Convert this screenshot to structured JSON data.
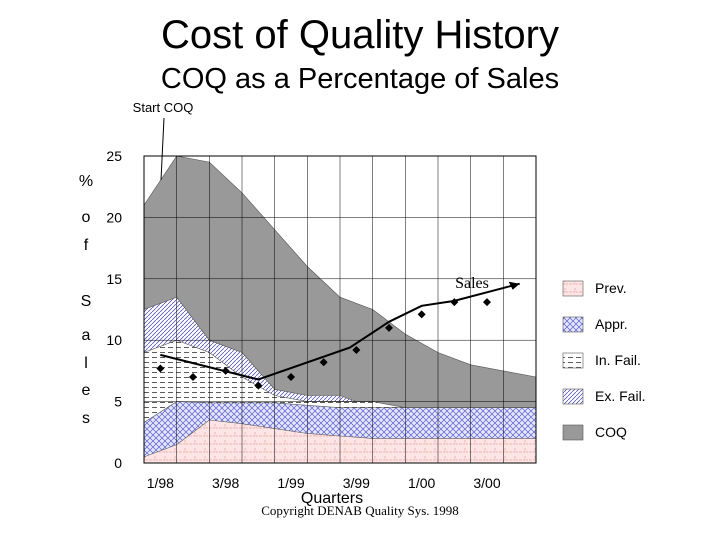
{
  "chart_data": {
    "type": "area",
    "title": "Cost of Quality History",
    "subtitle": "COQ as a Percentage of Sales",
    "ylabel": "% of Sales",
    "ylabel_chars": [
      "%",
      "o",
      "f",
      "S",
      "a",
      "l",
      "e",
      "s"
    ],
    "xlabel": "Quarters",
    "ylim": [
      0,
      25
    ],
    "yticks": [
      "0",
      "5",
      "10",
      "15",
      "20",
      "25"
    ],
    "xtick_labels": [
      "1/98",
      "3/98",
      "1/99",
      "3/99",
      "1/00",
      "3/00"
    ],
    "x_count": 13,
    "series": [
      {
        "name": "Prev.",
        "key": "prev",
        "values": [
          0.5,
          1.5,
          3.5,
          3.2,
          2.8,
          2.4,
          2.2,
          2.0,
          2.0,
          2.0,
          2.0,
          2.0,
          2.0
        ]
      },
      {
        "name": "Appr.",
        "key": "appr",
        "values": [
          3.3,
          5.0,
          4.9,
          4.9,
          4.9,
          4.7,
          4.5,
          4.5,
          4.5,
          4.5,
          4.5,
          4.5,
          4.5
        ]
      },
      {
        "name": "In. Fail.",
        "key": "infail",
        "values": [
          9.0,
          10.0,
          9.0,
          7.0,
          5.5,
          5.0,
          5.0,
          5.0,
          4.5,
          4.5,
          4.5,
          4.5,
          4.5
        ]
      },
      {
        "name": "Ex. Fail.",
        "key": "exfail",
        "values": [
          12.5,
          13.5,
          10.0,
          9.0,
          6.0,
          5.5,
          5.5,
          4.5,
          4.5,
          4.5,
          4.5,
          4.5,
          4.5
        ]
      },
      {
        "name": "COQ",
        "key": "coq",
        "values": [
          21.0,
          25.5,
          24.5,
          22.0,
          19.0,
          16.0,
          13.5,
          12.5,
          10.5,
          9.0,
          8.0,
          7.5,
          7.0
        ]
      }
    ],
    "sales": {
      "name": "Sales",
      "x": [
        0.5,
        1.5,
        2.5,
        3.5,
        4.5,
        5.5,
        6.5,
        7.5,
        8.5,
        9.5,
        10.5
      ],
      "values": [
        7.7,
        7.0,
        7.5,
        6.3,
        7.0,
        8.2,
        9.2,
        11.0,
        12.1,
        13.1,
        13.1
      ],
      "line": [
        {
          "x": 0.5,
          "y": 8.8
        },
        {
          "x": 3.5,
          "y": 6.8
        },
        {
          "x": 6.3,
          "y": 9.4
        },
        {
          "x": 7.5,
          "y": 11.5
        },
        {
          "x": 8.5,
          "y": 12.8
        },
        {
          "x": 9.5,
          "y": 13.2
        },
        {
          "x": 11.5,
          "y": 14.6
        }
      ]
    },
    "annotations": [
      {
        "text": "Start COQ",
        "x": 1,
        "y": 25.5
      },
      {
        "text": "Sales",
        "x": 11.2,
        "y": 15.0
      }
    ],
    "legend_placement": "right",
    "grid": true
  },
  "footer": {
    "copyright": "Copyright DENAB Quality Sys. 1998"
  },
  "colors": {
    "coq": "#999999",
    "exfail": "#ffffff",
    "infail": "#ffffff",
    "appr": "#d8dcf5",
    "prev": "#fde2e2",
    "grid": "#000000",
    "marker": "#000000"
  }
}
